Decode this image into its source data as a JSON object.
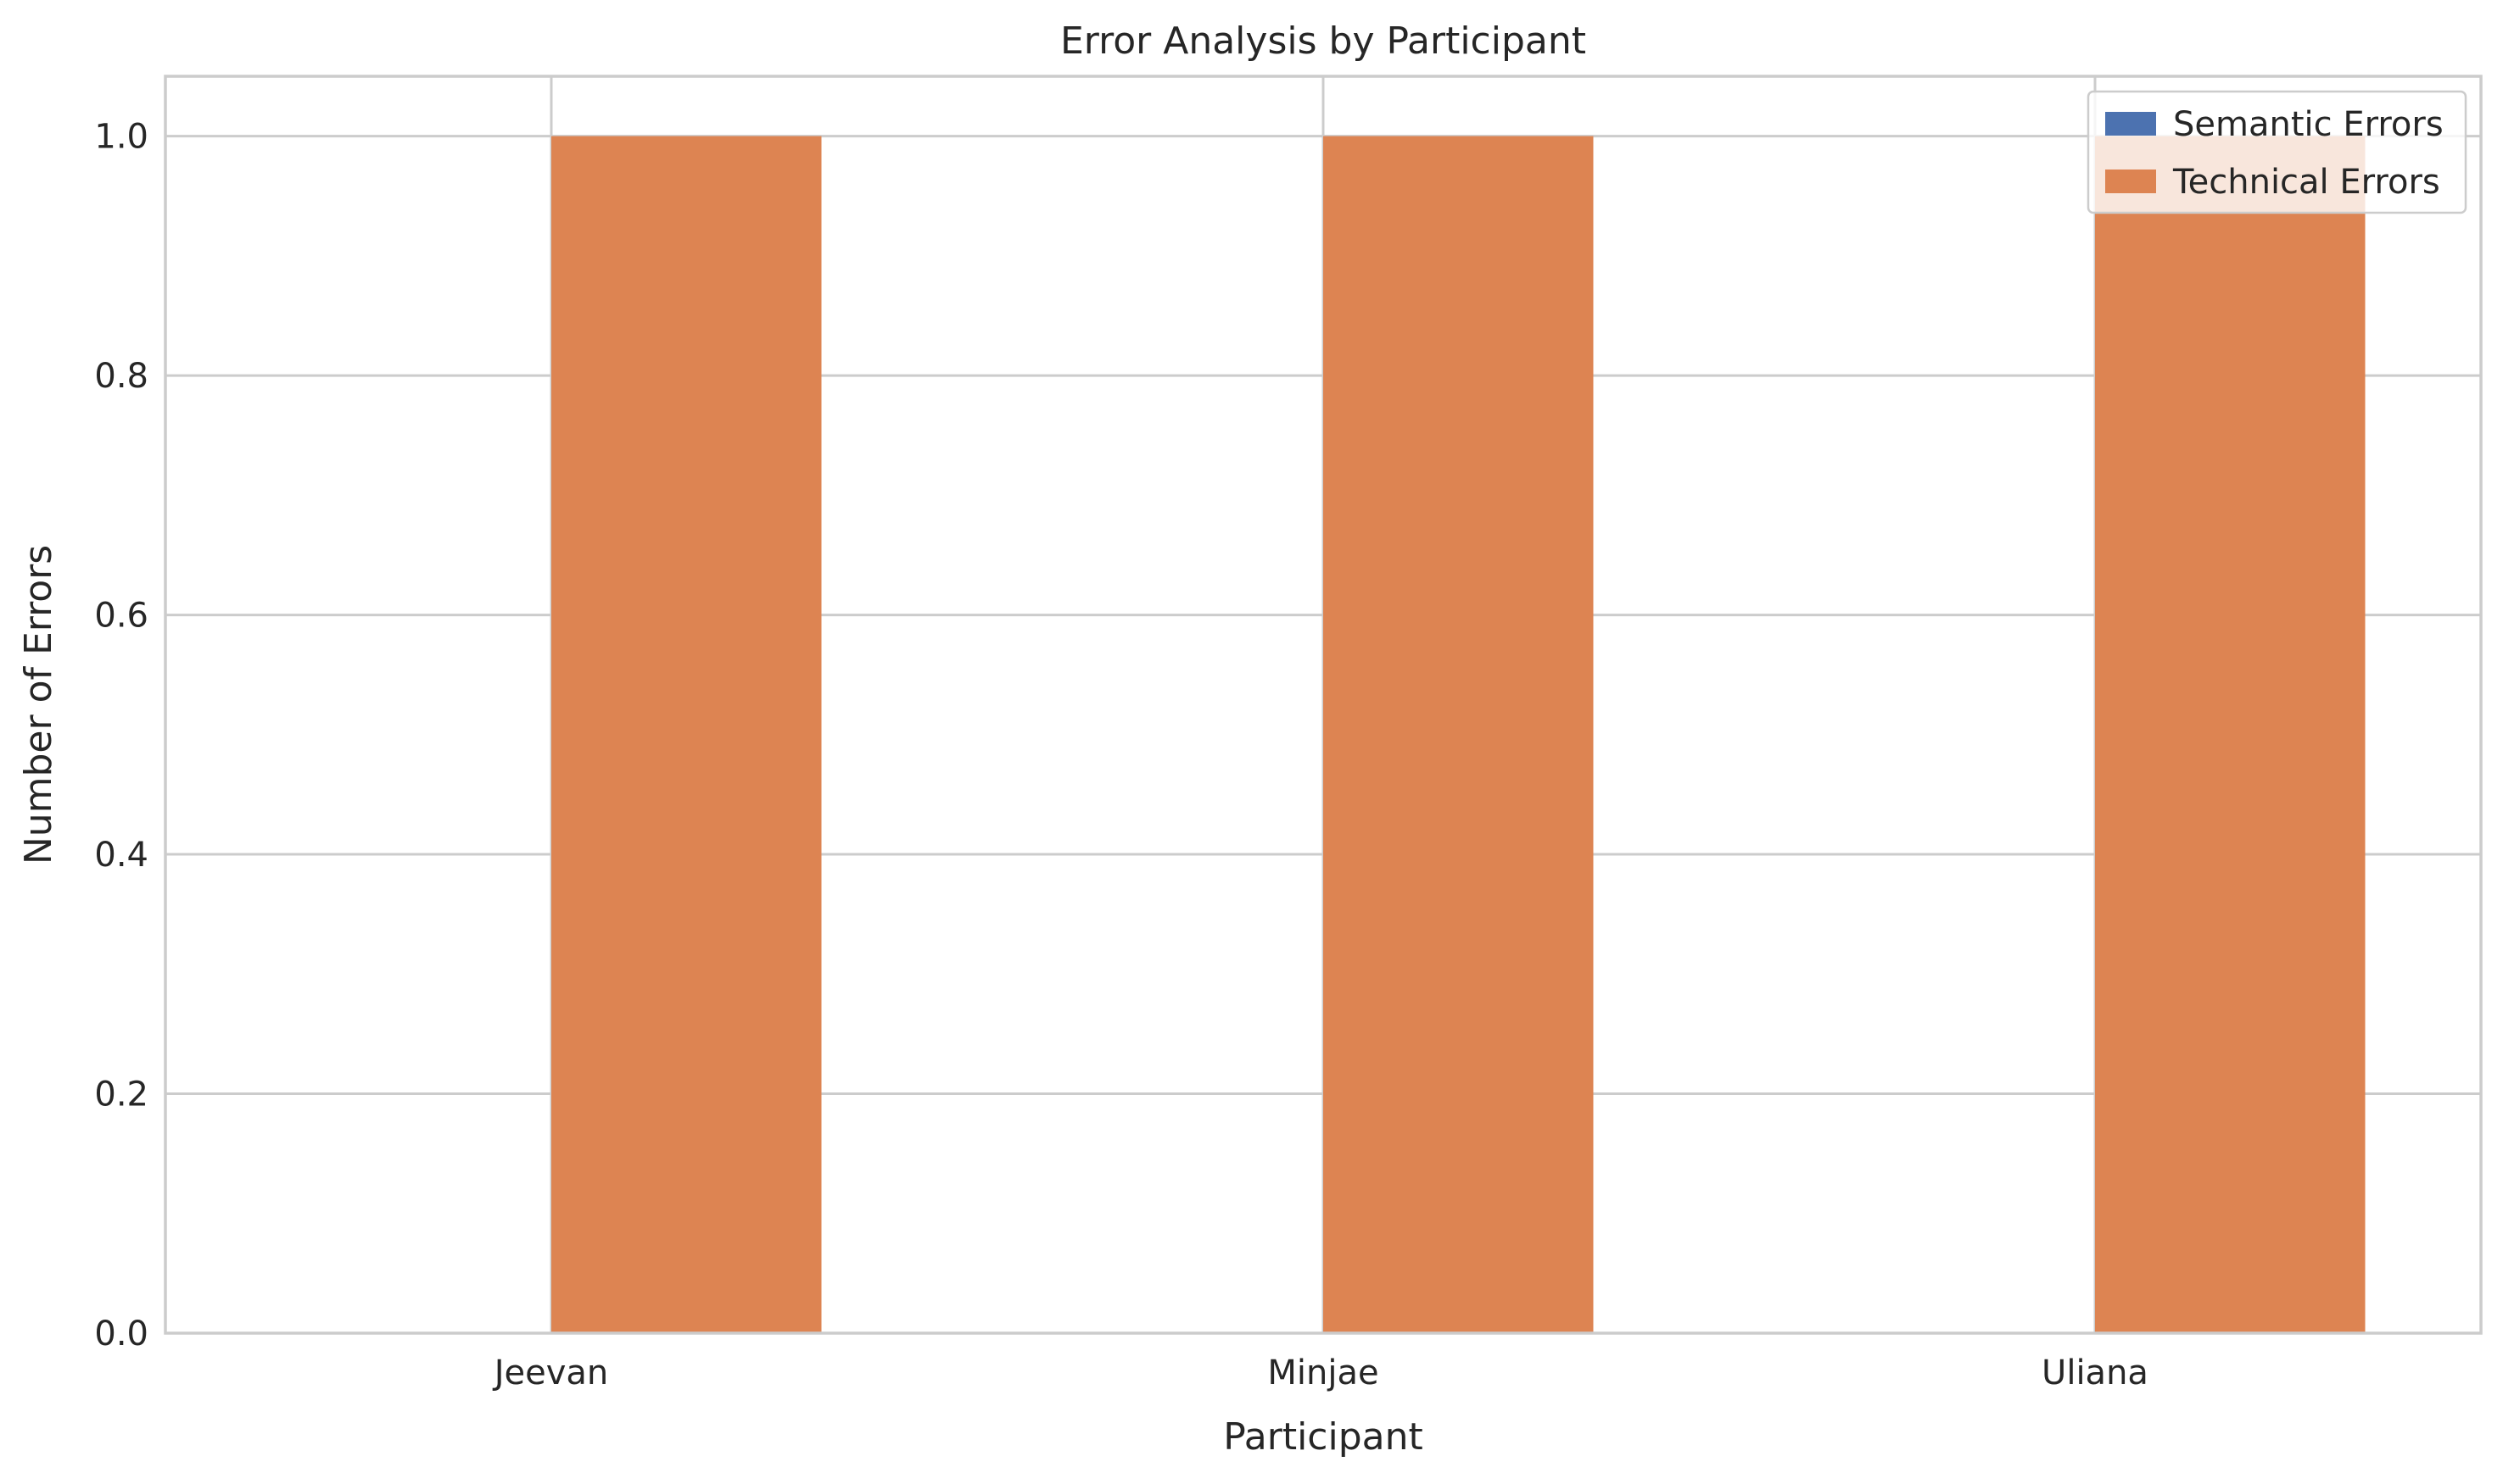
{
  "chart_data": {
    "type": "bar",
    "title": "Error Analysis by Participant",
    "xlabel": "Participant",
    "ylabel": "Number of Errors",
    "categories": [
      "Jeevan",
      "Minjae",
      "Uliana"
    ],
    "series": [
      {
        "name": "Semantic Errors",
        "values": [
          0,
          0,
          0
        ],
        "color": "#4c72b0"
      },
      {
        "name": "Technical Errors",
        "values": [
          1,
          1,
          1
        ],
        "color": "#dd8452"
      }
    ],
    "ylim": [
      0,
      1.05
    ],
    "yticks": [
      "0.0",
      "0.2",
      "0.4",
      "0.6",
      "0.8",
      "1.0"
    ],
    "grid": true,
    "legend_position": "top-right"
  }
}
